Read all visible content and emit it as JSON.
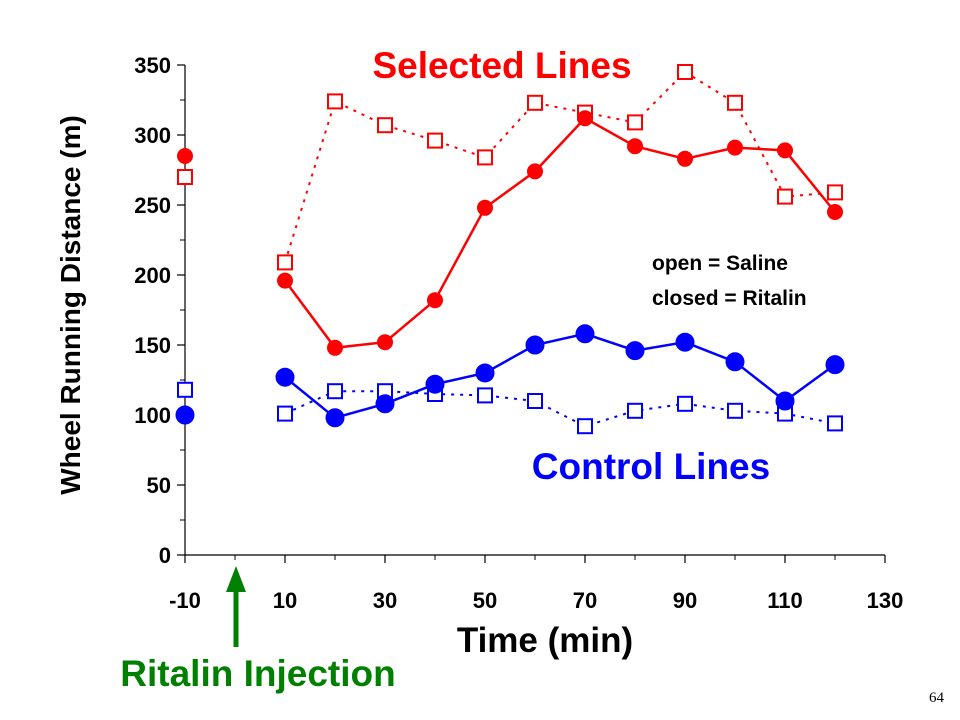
{
  "chart_data": {
    "type": "line",
    "xlabel": "Time (min)",
    "ylabel": "Wheel Running Distance (m)",
    "xlim": [
      -10,
      130
    ],
    "ylim": [
      0,
      350
    ],
    "x_ticks": [
      -10,
      10,
      30,
      50,
      70,
      90,
      110,
      130
    ],
    "y_ticks": [
      0,
      50,
      100,
      150,
      200,
      250,
      300,
      350
    ],
    "grid": false,
    "series": [
      {
        "group": "selected",
        "treatment": "saline",
        "color": "#ff0000",
        "marker": "open-square",
        "line": "dotted",
        "points": [
          [
            -10,
            270
          ],
          [
            10,
            209
          ],
          [
            20,
            324
          ],
          [
            30,
            307
          ],
          [
            40,
            296
          ],
          [
            50,
            284
          ],
          [
            60,
            323
          ],
          [
            70,
            316
          ],
          [
            80,
            309
          ],
          [
            90,
            345
          ],
          [
            100,
            323
          ],
          [
            110,
            256
          ],
          [
            120,
            259
          ]
        ]
      },
      {
        "group": "selected",
        "treatment": "ritalin",
        "color": "#ff0000",
        "marker": "filled-circle",
        "line": "solid",
        "points": [
          [
            -10,
            285
          ],
          [
            10,
            196
          ],
          [
            20,
            148
          ],
          [
            30,
            152
          ],
          [
            40,
            182
          ],
          [
            50,
            248
          ],
          [
            60,
            274
          ],
          [
            70,
            312
          ],
          [
            80,
            292
          ],
          [
            90,
            283
          ],
          [
            100,
            291
          ],
          [
            110,
            289
          ],
          [
            120,
            245
          ]
        ]
      },
      {
        "group": "control",
        "treatment": "saline",
        "color": "#0000ff",
        "marker": "open-square",
        "line": "dotted",
        "points": [
          [
            -10,
            118
          ],
          [
            10,
            101
          ],
          [
            20,
            117
          ],
          [
            30,
            117
          ],
          [
            40,
            115
          ],
          [
            50,
            114
          ],
          [
            60,
            110
          ],
          [
            70,
            92
          ],
          [
            80,
            103
          ],
          [
            90,
            108
          ],
          [
            100,
            103
          ],
          [
            110,
            101
          ],
          [
            120,
            94
          ]
        ]
      },
      {
        "group": "control",
        "treatment": "ritalin",
        "color": "#0000ff",
        "marker": "filled-circle",
        "line": "solid",
        "points": [
          [
            -10,
            100
          ],
          [
            10,
            127
          ],
          [
            20,
            98
          ],
          [
            30,
            108
          ],
          [
            40,
            122
          ],
          [
            50,
            130
          ],
          [
            60,
            150
          ],
          [
            70,
            158
          ],
          [
            80,
            146
          ],
          [
            90,
            152
          ],
          [
            100,
            138
          ],
          [
            110,
            110
          ],
          [
            120,
            136
          ]
        ]
      }
    ],
    "annotations": {
      "selected_label": "Selected Lines",
      "control_label": "Control Lines",
      "legend_line1": "open = Saline",
      "legend_line2": "closed = Ritalin",
      "injection_label": "Ritalin Injection",
      "injection_time": 0
    },
    "colors": {
      "selected": "#ff0000",
      "control": "#0000ff",
      "injection": "#008000"
    }
  },
  "page_number": "64"
}
